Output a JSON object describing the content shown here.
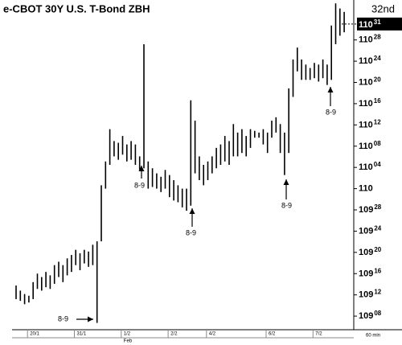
{
  "chart_data": {
    "type": "ohlc",
    "title": "e-CBOT  30Y  U.S.  T-Bond   ZBH",
    "corner_label": "32nd",
    "categories": [
      null,
      null,
      null,
      null,
      "20/1",
      null,
      null,
      null,
      null,
      null,
      null,
      null,
      null,
      null,
      null,
      "31/1",
      null,
      null,
      null,
      null,
      null,
      null,
      null,
      null,
      null,
      null,
      "1/2",
      null,
      null,
      null,
      null,
      null,
      null,
      null,
      null,
      null,
      null,
      "2/2",
      null,
      null,
      null,
      null,
      null,
      null,
      null,
      null,
      "4/2",
      null,
      null,
      null,
      null,
      null,
      null,
      null,
      null,
      null,
      null,
      null,
      null,
      null,
      "6/2",
      null,
      null,
      null,
      null,
      null,
      null,
      null,
      null,
      null,
      null,
      "7/2",
      null,
      null,
      null,
      null,
      null,
      null
    ],
    "month_label": "Feb",
    "interval_label": "60 min",
    "color": "#000000",
    "high": [
      109.43,
      109.4,
      109.38,
      109.37,
      109.45,
      109.5,
      109.48,
      109.51,
      109.49,
      109.55,
      109.57,
      109.55,
      109.59,
      109.61,
      109.64,
      109.62,
      109.64,
      109.63,
      109.67,
      109.69,
      110.02,
      110.16,
      110.35,
      110.28,
      110.27,
      110.31,
      110.26,
      110.28,
      110.26,
      110.19,
      110.85,
      110.16,
      110.12,
      110.09,
      110.07,
      110.11,
      110.08,
      110.05,
      110.02,
      110.0,
      110.0,
      110.52,
      110.4,
      110.19,
      110.14,
      110.16,
      110.19,
      110.24,
      110.26,
      110.31,
      110.28,
      110.38,
      110.33,
      110.35,
      110.31,
      110.35,
      110.34,
      110.33,
      110.35,
      110.33,
      110.4,
      110.42,
      110.38,
      110.33,
      110.59,
      110.76,
      110.83,
      110.76,
      110.73,
      110.71,
      110.74,
      110.73,
      110.76,
      110.73,
      110.96,
      111.09,
      111.06,
      111.04
    ],
    "low": [
      109.35,
      109.34,
      109.32,
      109.33,
      109.35,
      109.41,
      109.4,
      109.42,
      109.41,
      109.44,
      109.48,
      109.45,
      109.49,
      109.51,
      109.55,
      109.52,
      109.56,
      109.54,
      109.55,
      109.21,
      109.69,
      110.0,
      110.14,
      110.19,
      110.17,
      110.2,
      110.16,
      110.17,
      110.14,
      110.11,
      110.12,
      110.0,
      110.01,
      110.0,
      109.98,
      110.0,
      109.95,
      109.93,
      109.92,
      109.89,
      109.87,
      109.9,
      110.09,
      110.05,
      110.02,
      110.05,
      110.09,
      110.12,
      110.14,
      110.16,
      110.14,
      110.19,
      110.19,
      110.21,
      110.19,
      110.24,
      110.3,
      110.3,
      110.26,
      110.21,
      110.3,
      110.33,
      110.21,
      110.08,
      110.21,
      110.54,
      110.69,
      110.64,
      110.64,
      110.64,
      110.65,
      110.63,
      110.65,
      110.61,
      110.64,
      110.85,
      110.9,
      110.92
    ],
    "ylim": [
      109.17,
      111.11
    ],
    "yticks": [
      {
        "value": 109.25,
        "label": "109",
        "label_32nds": "08"
      },
      {
        "value": 109.375,
        "label": "109",
        "label_32nds": "12"
      },
      {
        "value": 109.5,
        "label": "109",
        "label_32nds": "16"
      },
      {
        "value": 109.625,
        "label": "109",
        "label_32nds": "20"
      },
      {
        "value": 109.75,
        "label": "109",
        "label_32nds": "24"
      },
      {
        "value": 109.875,
        "label": "109",
        "label_32nds": "28"
      },
      {
        "value": 110,
        "label": "110"
      },
      {
        "value": 110.125,
        "label": "110",
        "label_32nds": "04"
      },
      {
        "value": 110.25,
        "label": "110",
        "label_32nds": "08"
      },
      {
        "value": 110.375,
        "label": "110",
        "label_32nds": "12"
      },
      {
        "value": 110.5,
        "label": "110",
        "label_32nds": "16"
      },
      {
        "value": 110.625,
        "label": "110",
        "label_32nds": "20"
      },
      {
        "value": 110.75,
        "label": "110",
        "label_32nds": "24"
      },
      {
        "value": 110.875,
        "label": "110",
        "label_32nds": "28"
      }
    ],
    "last": {
      "value": 110.96875,
      "label": "110",
      "label_32nds": "31"
    },
    "annotations": [
      {
        "text": "8-9"
      },
      {
        "text": "8-9"
      },
      {
        "text": "8-9"
      },
      {
        "text": "8-9"
      },
      {
        "text": "8-9"
      }
    ]
  }
}
